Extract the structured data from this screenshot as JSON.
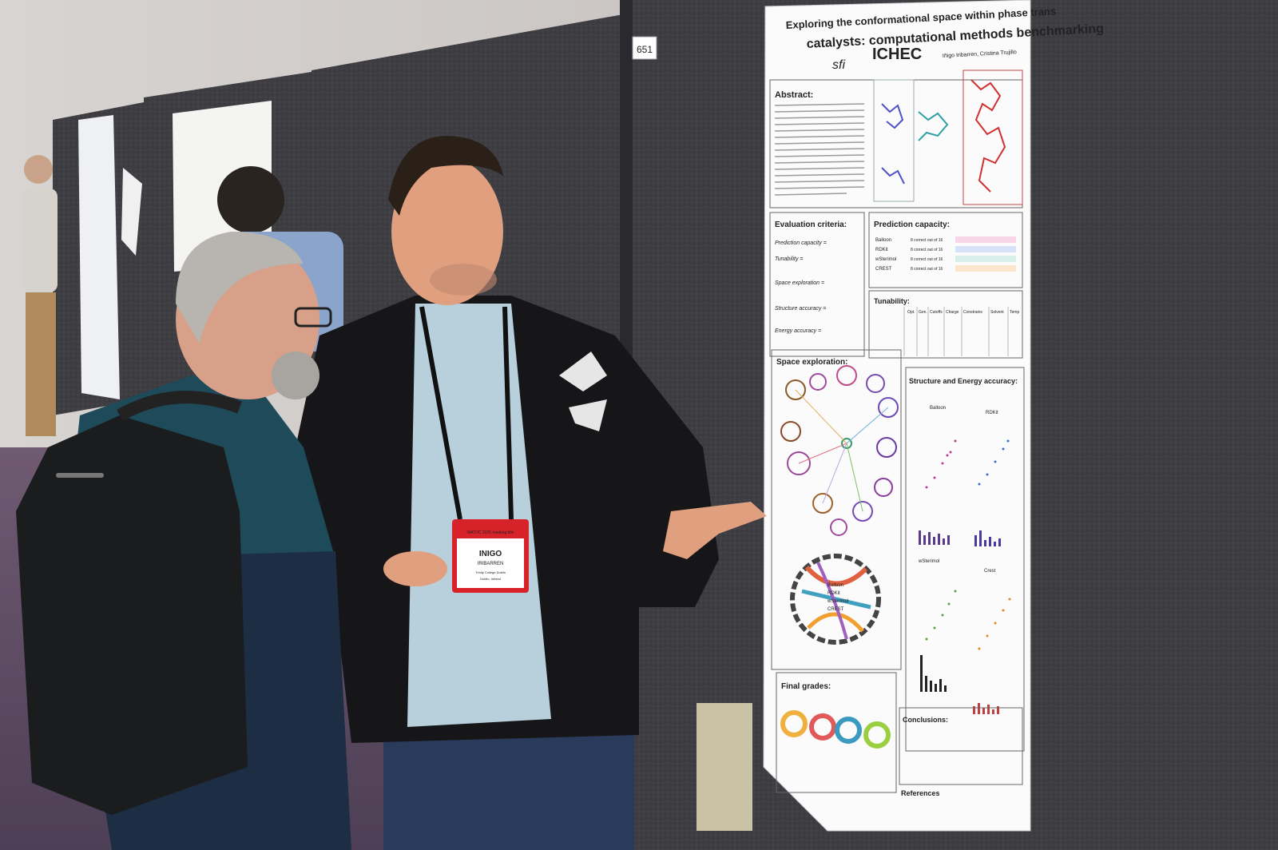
{
  "poster": {
    "title_line1": "Exploring the conformational space within phase trans",
    "title_line2": "catalysts: computational methods benchmarking",
    "authors": "Iñigo Iribarren, Cristina Trujillo",
    "logo_ichec": "ICHEC",
    "logo_sfi": "sfi",
    "sections": {
      "abstract": "Abstract:",
      "evaluation": "Evaluation criteria:",
      "prediction": "Prediction capacity:",
      "tunability": "Tunability:",
      "space": "Space exploration:",
      "structure": "Structure and Energy accuracy:",
      "grades": "Final grades:",
      "conclusions": "Conclusions:",
      "references": "References"
    },
    "methods": [
      "Balloon",
      "RDKit",
      "wSterimol",
      "CREST"
    ],
    "method_colors": [
      "#c23b8f",
      "#3b6fd0",
      "#2a9a8a",
      "#e08a20"
    ],
    "criteria": [
      "Prediction capacity =",
      "Tunability =",
      "Space exploration =",
      "Structure accuracy =",
      "Energy accuracy ="
    ],
    "tunability_cols": [
      "Opt.",
      "Gen.",
      "Cutoffs",
      "Charge",
      "Constrains",
      "Solvent",
      "Temp"
    ],
    "prediction_rows": [
      "8 correct out of 16",
      "8 correct out of 16",
      "8 correct out of 16",
      "8 correct out of 16"
    ],
    "panel_labels": [
      "Balloon",
      "RDKit",
      "wSterimol",
      "Crest"
    ]
  },
  "board_number": "651",
  "badge": {
    "event": "WATOC 2025 meeting title",
    "name": "INIGO",
    "surname": "IRIBARREN",
    "affiliation": "Trinity College Dublin",
    "location": "Dublin, Ireland"
  }
}
